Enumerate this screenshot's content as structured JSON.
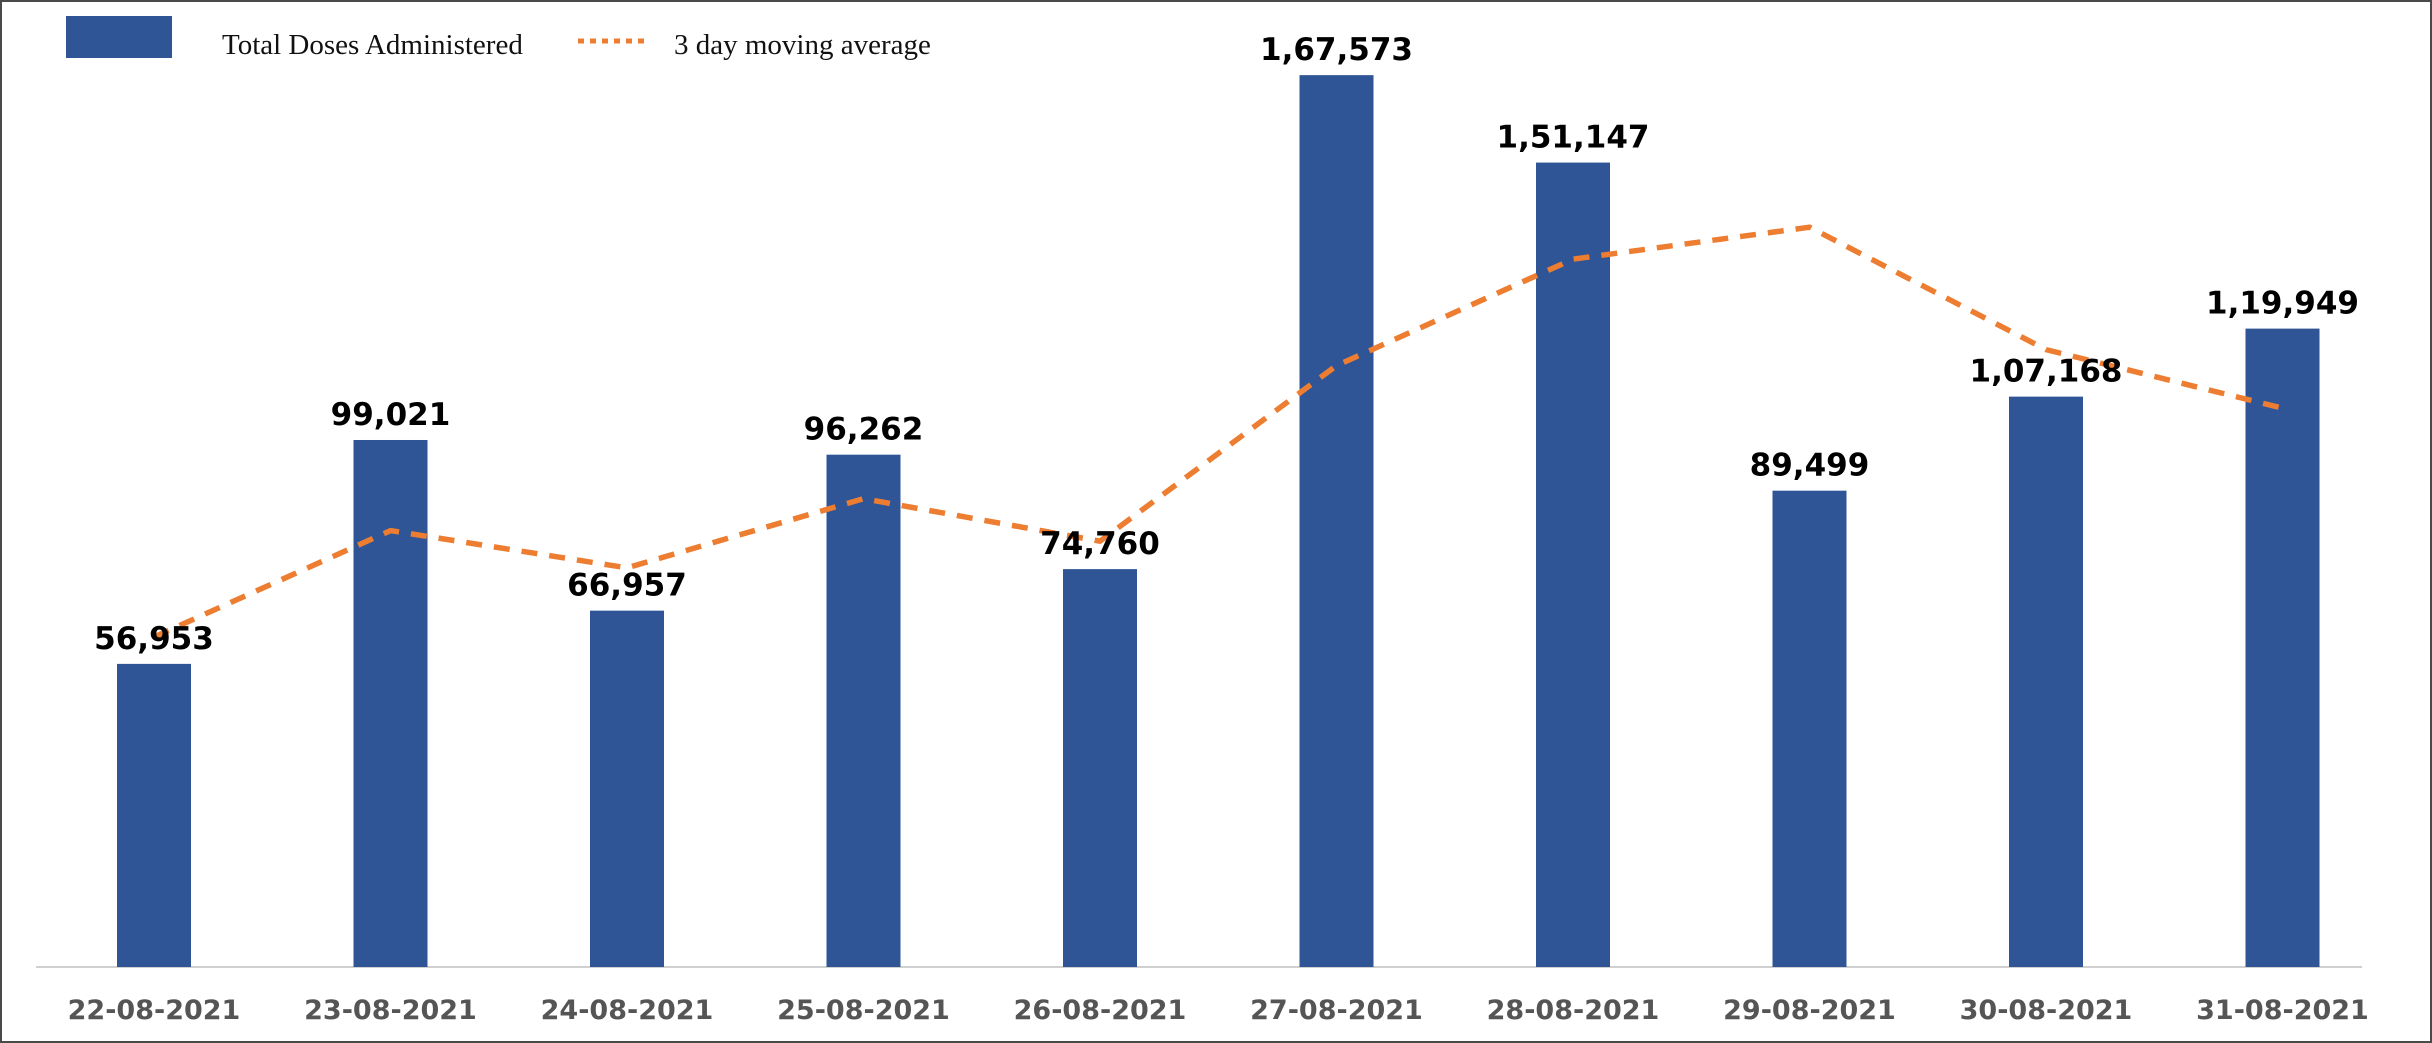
{
  "chart_data": {
    "type": "bar",
    "title": "",
    "xlabel": "",
    "ylabel": "",
    "ylim": [
      0,
      180000
    ],
    "grid": false,
    "legend_position": "top-left",
    "categories": [
      "22-08-2021",
      "23-08-2021",
      "24-08-2021",
      "25-08-2021",
      "26-08-2021",
      "27-08-2021",
      "28-08-2021",
      "29-08-2021",
      "30-08-2021",
      "31-08-2021"
    ],
    "series": [
      {
        "name": "Total Doses Administered",
        "type": "bar",
        "color": "#2f5597",
        "values": [
          56953,
          99021,
          66957,
          96262,
          74760,
          167573,
          151147,
          89499,
          107168,
          119949
        ],
        "labels": [
          "56,953",
          "99,021",
          "66,957",
          "96,262",
          "74,760",
          "1,67,573",
          "1,51,147",
          "89,499",
          "1,07,168",
          "1,19,949"
        ]
      },
      {
        "name": "3 day moving average",
        "type": "line",
        "style": "dashed",
        "color": "#ed7d31",
        "values": [
          62000,
          82000,
          75000,
          88000,
          80000,
          113000,
          133000,
          139000,
          116000,
          105000
        ]
      }
    ]
  }
}
